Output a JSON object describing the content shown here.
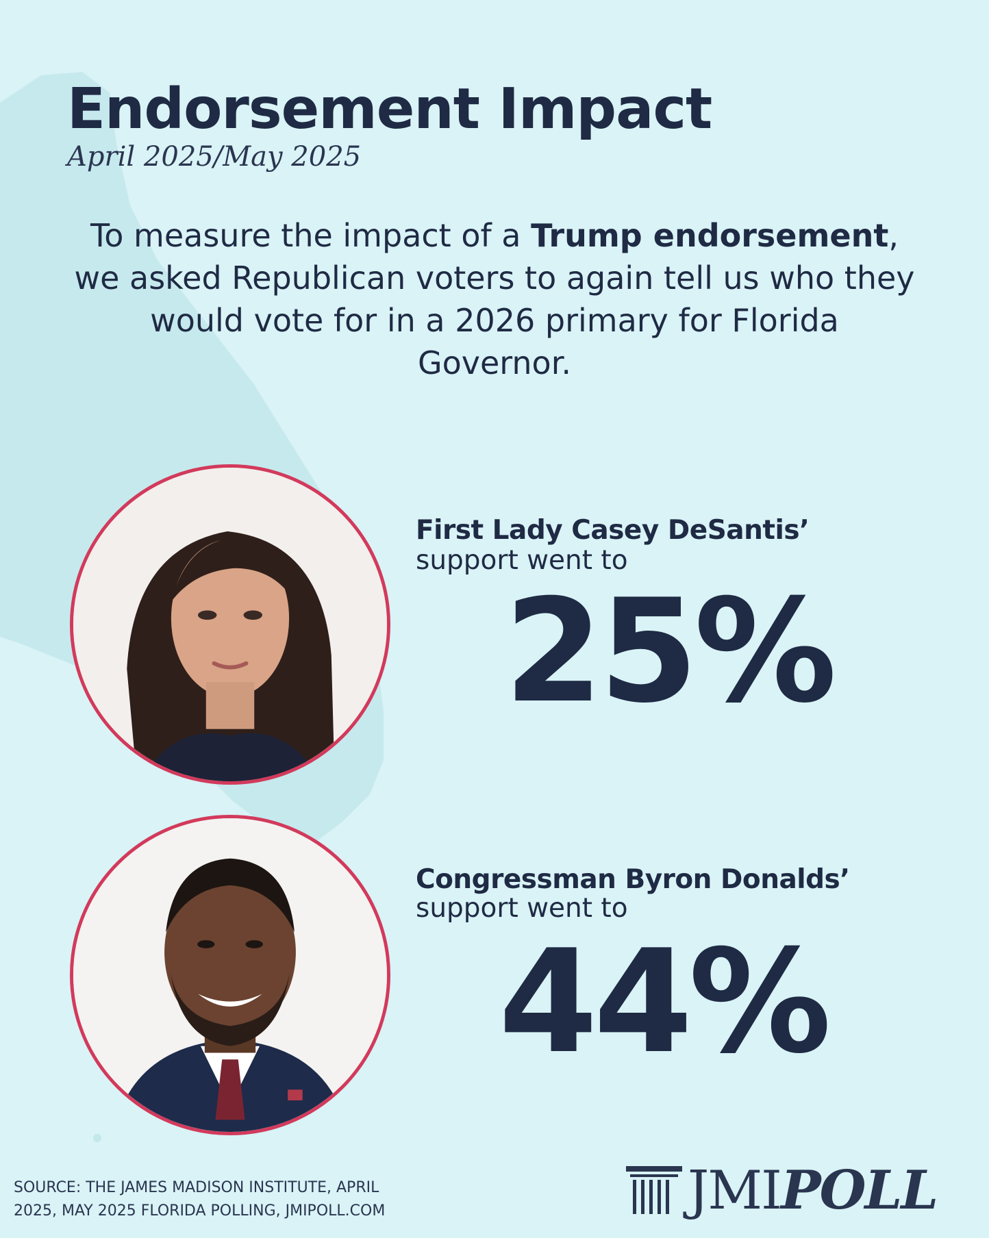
{
  "header": {
    "title": "Endorsement Impact",
    "subtitle": "April 2025/May 2025"
  },
  "intro": {
    "part1": "To measure the impact of a ",
    "bold1": "Trump endorsement",
    "part2": ", we asked Republican voters to again tell us who they would vote for in a 2026 primary for Florida Governor."
  },
  "candidates": [
    {
      "name": "First Lady Casey DeSantis’",
      "subtitle": "support went to",
      "percent": "25%"
    },
    {
      "name": "Congressman Byron Donalds’",
      "subtitle": "support went to",
      "percent": "44%"
    }
  ],
  "footer": {
    "source_line1": "SOURCE: THE JAMES MADISON INSTITUTE, APRIL",
    "source_line2": "2025, MAY 2025 FLORIDA POLLING, JMIPOLL.COM",
    "logo_part1": "JMI",
    "logo_part2": "POLL"
  },
  "colors": {
    "background": "#d9f3f6",
    "text": "#1f2a44",
    "ring": "#d23a5c"
  },
  "icons": [
    "column-logo-icon"
  ]
}
